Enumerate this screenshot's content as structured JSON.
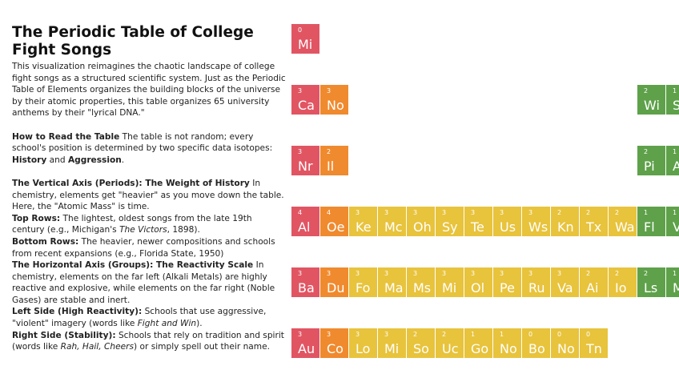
{
  "left": {
    "title": "The Periodic Table of College Fight Songs",
    "paragraphs": [
      {
        "gap": true,
        "runs": [
          {
            "t": "This visualization reimagines the chaotic landscape of college fight songs as a structured scientific system. Just as the Periodic Table of Elements organizes the building blocks of the universe by their atomic properties, this table organizes 65 university anthems by their \"lyrical DNA.\"",
            "style": "plain"
          }
        ]
      },
      {
        "gap": true,
        "runs": [
          {
            "t": "How to Read the Table",
            "style": "bold"
          },
          {
            "t": " The table is not random; every school's position is determined by two specific data isotopes: ",
            "style": "plain"
          },
          {
            "t": "History",
            "style": "bold"
          },
          {
            "t": " and ",
            "style": "plain"
          },
          {
            "t": "Aggression",
            "style": "bold"
          },
          {
            "t": ".",
            "style": "plain"
          }
        ]
      },
      {
        "gap": false,
        "runs": [
          {
            "t": "The Vertical Axis (Periods): The Weight of History",
            "style": "bold"
          },
          {
            "t": " In chemistry, elements get \"heavier\" as you move down the table. Here, the \"Atomic Mass\" is time.",
            "style": "plain"
          }
        ]
      },
      {
        "gap": false,
        "runs": [
          {
            "t": "Top Rows:",
            "style": "bold"
          },
          {
            "t": " The lightest, oldest songs from the late 19th century (e.g., Michigan's ",
            "style": "plain"
          },
          {
            "t": "The Victors",
            "style": "italic"
          },
          {
            "t": ", 1898).",
            "style": "plain"
          }
        ]
      },
      {
        "gap": false,
        "runs": [
          {
            "t": "Bottom Rows:",
            "style": "bold"
          },
          {
            "t": " The heavier, newer compositions and schools from recent expansions (e.g., Florida State, 1950)",
            "style": "plain"
          }
        ]
      },
      {
        "gap": false,
        "runs": [
          {
            "t": "The Horizontal Axis (Groups): The Reactivity Scale",
            "style": "bold"
          },
          {
            "t": " In chemistry, elements on the far left (Alkali Metals) are highly reactive and explosive, while elements on the far right (Noble Gases) are stable and inert.",
            "style": "plain"
          }
        ]
      },
      {
        "gap": false,
        "runs": [
          {
            "t": "Left Side (High Reactivity):",
            "style": "bold"
          },
          {
            "t": " Schools that use aggressive, \"violent\" imagery (words like ",
            "style": "plain"
          },
          {
            "t": "Fight and Win",
            "style": "italic"
          },
          {
            "t": ").",
            "style": "plain"
          }
        ]
      },
      {
        "gap": false,
        "runs": [
          {
            "t": "Right Side (Stability):",
            "style": "bold"
          },
          {
            "t": " Schools that rely on tradition and spirit (words like ",
            "style": "plain"
          },
          {
            "t": "Rah, Hail, Cheers",
            "style": "italic"
          },
          {
            "t": ") or simply spell out their name.",
            "style": "plain"
          }
        ]
      }
    ]
  },
  "table": {
    "rows": [
      [
        {
          "n": "0",
          "s": "Mi",
          "color": "#e15563"
        }
      ],
      [
        {
          "n": "3",
          "s": "Ca",
          "color": "#e15563"
        },
        {
          "n": "3",
          "s": "No",
          "color": "#f08a2e"
        },
        null,
        null,
        null,
        null,
        null,
        null,
        null,
        null,
        null,
        null,
        {
          "n": "2",
          "s": "Wi",
          "color": "#5ea14a"
        },
        {
          "n": "1",
          "s": "S",
          "color": "#5ea14a"
        }
      ],
      [
        {
          "n": "3",
          "s": "Nr",
          "color": "#e15563"
        },
        {
          "n": "2",
          "s": "Il",
          "color": "#f08a2e"
        },
        null,
        null,
        null,
        null,
        null,
        null,
        null,
        null,
        null,
        null,
        {
          "n": "2",
          "s": "Pi",
          "color": "#5ea14a"
        },
        {
          "n": "1",
          "s": "A",
          "color": "#5ea14a"
        }
      ],
      [
        {
          "n": "4",
          "s": "Al",
          "color": "#e15563"
        },
        {
          "n": "4",
          "s": "Oe",
          "color": "#f08a2e"
        },
        {
          "n": "3",
          "s": "Ke",
          "color": "#e8c33c"
        },
        {
          "n": "3",
          "s": "Mc",
          "color": "#e8c33c"
        },
        {
          "n": "3",
          "s": "Oh",
          "color": "#e8c33c"
        },
        {
          "n": "3",
          "s": "Sy",
          "color": "#e8c33c"
        },
        {
          "n": "3",
          "s": "Te",
          "color": "#e8c33c"
        },
        {
          "n": "3",
          "s": "Us",
          "color": "#e8c33c"
        },
        {
          "n": "3",
          "s": "Ws",
          "color": "#e8c33c"
        },
        {
          "n": "2",
          "s": "Kn",
          "color": "#e8c33c"
        },
        {
          "n": "2",
          "s": "Tx",
          "color": "#e8c33c"
        },
        {
          "n": "2",
          "s": "Wa",
          "color": "#e8c33c"
        },
        {
          "n": "1",
          "s": "Fl",
          "color": "#5ea14a"
        },
        {
          "n": "1",
          "s": "V",
          "color": "#5ea14a"
        }
      ],
      [
        {
          "n": "3",
          "s": "Ba",
          "color": "#e15563"
        },
        {
          "n": "3",
          "s": "Du",
          "color": "#f08a2e"
        },
        {
          "n": "3",
          "s": "Fo",
          "color": "#e8c33c"
        },
        {
          "n": "3",
          "s": "Ma",
          "color": "#e8c33c"
        },
        {
          "n": "3",
          "s": "Ms",
          "color": "#e8c33c"
        },
        {
          "n": "3",
          "s": "Mi",
          "color": "#e8c33c"
        },
        {
          "n": "3",
          "s": "Ol",
          "color": "#e8c33c"
        },
        {
          "n": "3",
          "s": "Pe",
          "color": "#e8c33c"
        },
        {
          "n": "3",
          "s": "Ru",
          "color": "#e8c33c"
        },
        {
          "n": "3",
          "s": "Va",
          "color": "#e8c33c"
        },
        {
          "n": "2",
          "s": "Ai",
          "color": "#e8c33c"
        },
        {
          "n": "2",
          "s": "Io",
          "color": "#e8c33c"
        },
        {
          "n": "2",
          "s": "Ls",
          "color": "#5ea14a"
        },
        {
          "n": "1",
          "s": "M",
          "color": "#5ea14a"
        }
      ],
      [
        {
          "n": "3",
          "s": "Au",
          "color": "#e15563"
        },
        {
          "n": "3",
          "s": "Co",
          "color": "#f08a2e"
        },
        {
          "n": "3",
          "s": "Lo",
          "color": "#e8c33c"
        },
        {
          "n": "3",
          "s": "Mi",
          "color": "#e8c33c"
        },
        {
          "n": "2",
          "s": "So",
          "color": "#e8c33c"
        },
        {
          "n": "2",
          "s": "Uc",
          "color": "#e8c33c"
        },
        {
          "n": "1",
          "s": "Go",
          "color": "#e8c33c"
        },
        {
          "n": "1",
          "s": "No",
          "color": "#e8c33c"
        },
        {
          "n": "0",
          "s": "Bo",
          "color": "#e8c33c"
        },
        {
          "n": "0",
          "s": "No",
          "color": "#e8c33c"
        },
        {
          "n": "0",
          "s": "Tn",
          "color": "#e8c33c"
        }
      ]
    ]
  }
}
